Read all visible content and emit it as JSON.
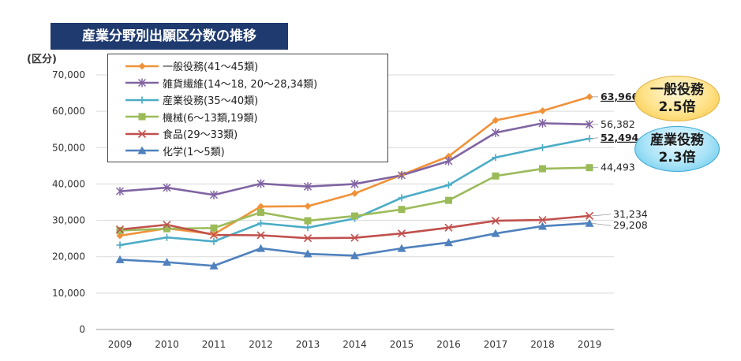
{
  "title": "産業分野別出願区分数の推移",
  "unit_label": "(区分)",
  "callouts": {
    "general": {
      "line1": "一般役務",
      "line2": "2.5倍"
    },
    "industrial": {
      "line1": "産業役務",
      "line2": "2.3倍"
    }
  },
  "chart_data": {
    "type": "line",
    "title": "産業分野別出願区分数の推移",
    "ylabel": "(区分)",
    "xlabel": "",
    "ylim": [
      0,
      70000
    ],
    "yticks": [
      0,
      10000,
      20000,
      30000,
      40000,
      50000,
      60000,
      70000
    ],
    "ytick_labels": [
      "0",
      "10,000",
      "20,000",
      "30,000",
      "40,000",
      "50,000",
      "60,000",
      "70,000"
    ],
    "categories": [
      "2009",
      "2010",
      "2011",
      "2012",
      "2013",
      "2014",
      "2015",
      "2016",
      "2017",
      "2018",
      "2019"
    ],
    "legend_position": "top-left",
    "series": [
      {
        "name": "一般役務(41〜45類)",
        "color": "#f0923a",
        "marker": "diamond",
        "values": [
          25800,
          27800,
          26200,
          33800,
          33900,
          37400,
          42500,
          47600,
          57500,
          60100,
          63966
        ],
        "end_label": "63,966",
        "end_label_underline": true
      },
      {
        "name": "雑貨繊維(14〜18, 20〜28,34類)",
        "color": "#8064a2",
        "marker": "asterisk",
        "values": [
          38000,
          39000,
          37000,
          40100,
          39300,
          40000,
          42400,
          46300,
          54100,
          56700,
          56382
        ],
        "end_label": "56,382",
        "end_label_underline": false
      },
      {
        "name": "産業役務(35〜40類)",
        "color": "#4bacc6",
        "marker": "plus",
        "values": [
          23200,
          25300,
          24200,
          29200,
          28000,
          30500,
          36200,
          39700,
          47300,
          50000,
          52494
        ],
        "end_label": "52,494",
        "end_label_underline": true
      },
      {
        "name": "機械(6〜13類,19類)",
        "color": "#9bbb59",
        "marker": "square",
        "values": [
          27200,
          27700,
          27900,
          32200,
          29900,
          31200,
          33000,
          35500,
          42200,
          44200,
          44493
        ],
        "end_label": "44,493",
        "end_label_underline": false
      },
      {
        "name": "食品(29〜33類)",
        "color": "#c0504d",
        "marker": "x",
        "values": [
          27500,
          28800,
          26000,
          25900,
          25100,
          25200,
          26400,
          28000,
          29900,
          30100,
          31234
        ],
        "end_label": "31,234",
        "end_label_underline": false
      },
      {
        "name": "化学(1〜5類)",
        "color": "#4f81bd",
        "marker": "triangle",
        "values": [
          19200,
          18500,
          17500,
          22300,
          20800,
          20300,
          22300,
          23900,
          26400,
          28400,
          29208
        ],
        "end_label": "29,208",
        "end_label_underline": false
      }
    ]
  }
}
